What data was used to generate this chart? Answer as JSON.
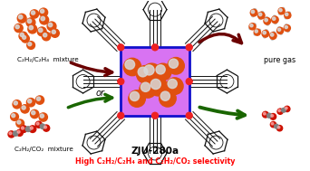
{
  "bg_color": "#ffffff",
  "title_text": "ZJU-280a",
  "subtitle_text": "High C₂H₂/C₂H₄ and C₂H₂/CO₂ selectivity",
  "subtitle_color": "#ff0000",
  "title_color": "#000000",
  "label_top_left": "C₂H₂/C₂H₄  mixture",
  "label_bot_left": "C₂H₂/CO₂  mixture",
  "label_right": "pure gas",
  "label_or": "or",
  "arrow_dark": "#6b0000",
  "arrow_green": "#1a6600",
  "orange": "#e05010",
  "white_mol": "#d8d8d8",
  "red_co2": "#cc1100",
  "gray_c": "#808080",
  "mof_purple": "#cc44ee",
  "mof_blue": "#1111cc",
  "mof_red_node": "#ee2222"
}
